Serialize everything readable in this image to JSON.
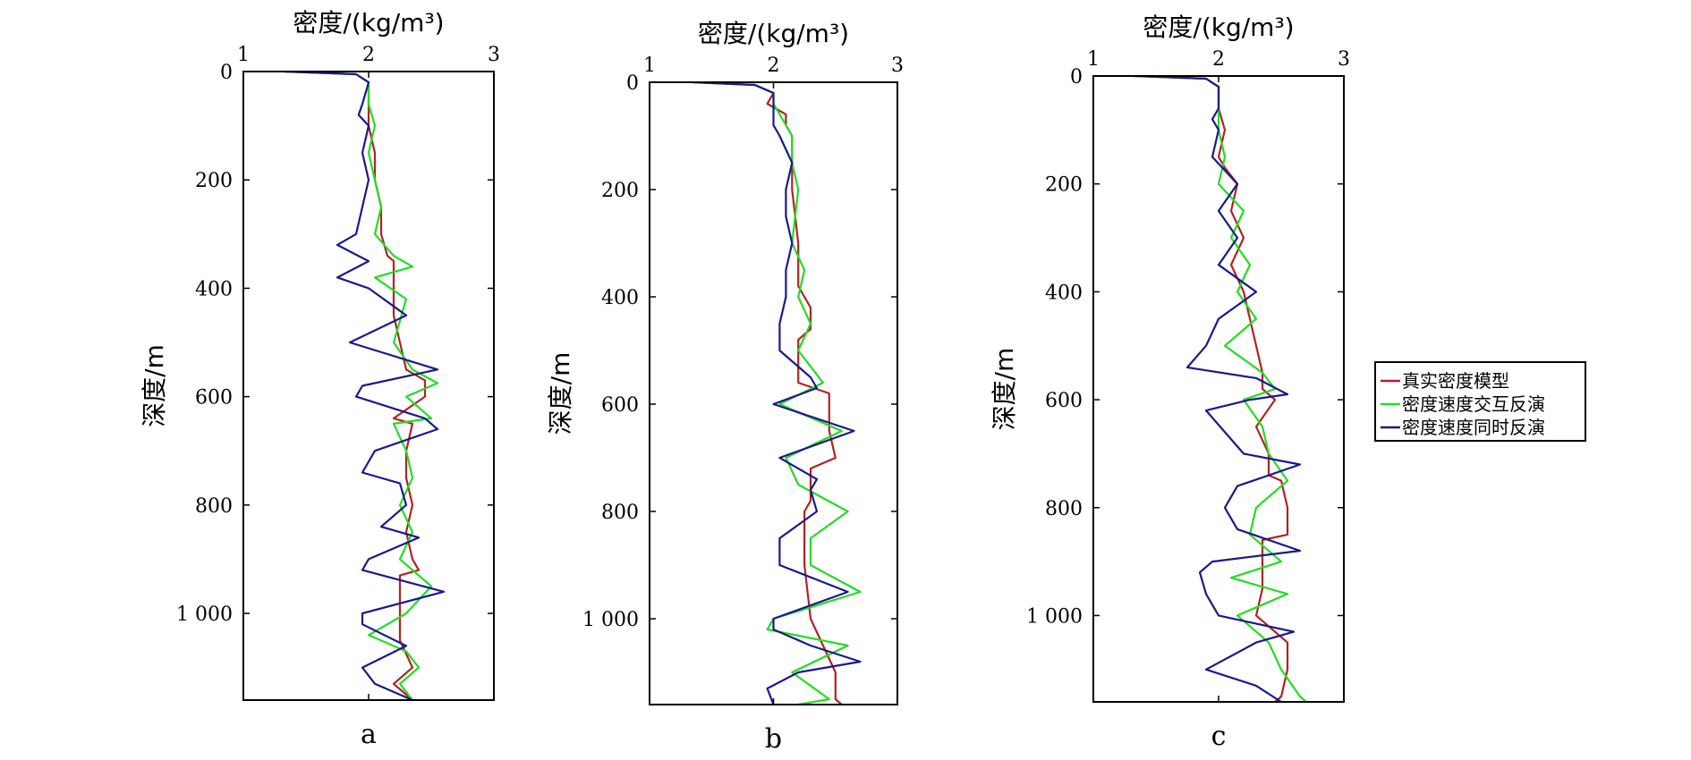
{
  "chart_data": {
    "type": "line",
    "shared": {
      "xlabel": "密度/(kg/m³)",
      "ylabel": "深度/m",
      "xlim": [
        1,
        3
      ],
      "ylim": [
        0,
        1160
      ],
      "xticks": [
        "1",
        "2",
        "3"
      ],
      "yticks": [
        {
          "value": 0,
          "label": "0"
        },
        {
          "value": 200,
          "label": "200"
        },
        {
          "value": 400,
          "label": "400"
        },
        {
          "value": 600,
          "label": "600"
        },
        {
          "value": 800,
          "label": "800"
        },
        {
          "value": 1000,
          "label": "1 000"
        }
      ],
      "legend": {
        "placement": "right",
        "entries": [
          {
            "name": "真实密度模型",
            "color": "#b22222"
          },
          {
            "name": "密度速度交互反演",
            "color": "#22dd22"
          },
          {
            "name": "密度速度同时反演",
            "color": "#1a1a8c"
          }
        ]
      }
    },
    "panels": [
      {
        "label": "a",
        "series": [
          {
            "name": "真实密度模型",
            "color": "#b22222",
            "depth": [
              0,
              5,
              20,
              60,
              100,
              150,
              200,
              250,
              300,
              340,
              350,
              400,
              450,
              500,
              550,
              570,
              600,
              640,
              650,
              700,
              750,
              800,
              850,
              900,
              920,
              930,
              950,
              1000,
              1050,
              1100,
              1130,
              1160
            ],
            "density": [
              1.33,
              1.9,
              2.0,
              2.0,
              2.0,
              2.05,
              2.05,
              2.1,
              2.1,
              2.15,
              2.2,
              2.2,
              2.2,
              2.25,
              2.3,
              2.45,
              2.45,
              2.2,
              2.35,
              2.3,
              2.3,
              2.35,
              2.3,
              2.35,
              2.4,
              2.25,
              2.25,
              2.25,
              2.25,
              2.35,
              2.2,
              2.35
            ]
          },
          {
            "name": "密度速度交互反演",
            "color": "#22dd22",
            "depth": [
              0,
              5,
              20,
              60,
              100,
              150,
              200,
              250,
              300,
              340,
              360,
              380,
              420,
              460,
              500,
              550,
              575,
              600,
              640,
              650,
              700,
              750,
              800,
              850,
              900,
              950,
              1000,
              1040,
              1070,
              1100,
              1130,
              1160
            ],
            "density": [
              1.33,
              1.9,
              2.0,
              2.0,
              2.05,
              2.0,
              2.05,
              2.1,
              2.05,
              2.2,
              2.35,
              2.05,
              2.3,
              2.25,
              2.2,
              2.35,
              2.55,
              2.3,
              2.5,
              2.2,
              2.3,
              2.35,
              2.25,
              2.35,
              2.25,
              2.5,
              2.3,
              2.0,
              2.3,
              2.4,
              2.25,
              2.35
            ]
          },
          {
            "name": "密度速度同时反演",
            "color": "#1a1a8c",
            "depth": [
              0,
              5,
              20,
              60,
              80,
              100,
              150,
              200,
              250,
              300,
              320,
              350,
              380,
              400,
              450,
              500,
              550,
              580,
              600,
              640,
              660,
              700,
              740,
              760,
              800,
              840,
              860,
              900,
              920,
              960,
              1000,
              1020,
              1060,
              1100,
              1130,
              1160
            ],
            "density": [
              1.33,
              1.9,
              2.0,
              1.95,
              1.92,
              2.0,
              1.95,
              2.0,
              1.95,
              1.9,
              1.75,
              2.0,
              1.75,
              2.0,
              2.3,
              1.85,
              2.55,
              1.95,
              1.9,
              2.45,
              2.55,
              2.05,
              1.95,
              2.25,
              2.3,
              2.1,
              2.4,
              2.0,
              1.95,
              2.6,
              1.95,
              1.95,
              2.3,
              1.95,
              2.05,
              2.35
            ]
          }
        ]
      },
      {
        "label": "b",
        "series": [
          {
            "name": "真实密度模型",
            "color": "#b22222",
            "depth": [
              0,
              5,
              20,
              40,
              60,
              80,
              100,
              200,
              300,
              380,
              400,
              420,
              460,
              480,
              500,
              560,
              580,
              650,
              700,
              720,
              740,
              780,
              800,
              900,
              1000,
              1100,
              1150,
              1160
            ],
            "density": [
              1.35,
              1.85,
              2.0,
              1.95,
              2.1,
              2.1,
              2.15,
              2.15,
              2.2,
              2.2,
              2.25,
              2.3,
              2.3,
              2.2,
              2.2,
              2.2,
              2.45,
              2.45,
              2.5,
              2.3,
              2.3,
              2.3,
              2.25,
              2.25,
              2.3,
              2.5,
              2.5,
              2.55
            ]
          },
          {
            "name": "密度速度交互反演",
            "color": "#22dd22",
            "depth": [
              0,
              5,
              20,
              40,
              60,
              80,
              100,
              150,
              200,
              300,
              350,
              400,
              450,
              500,
              560,
              600,
              650,
              700,
              750,
              800,
              850,
              900,
              950,
              1000,
              1020,
              1050,
              1100,
              1150,
              1160
            ],
            "density": [
              1.35,
              1.85,
              2.0,
              2.0,
              2.05,
              2.1,
              2.15,
              2.15,
              2.2,
              2.15,
              2.25,
              2.2,
              2.3,
              2.2,
              2.4,
              2.05,
              2.55,
              2.1,
              2.2,
              2.6,
              2.3,
              2.3,
              2.7,
              2.0,
              1.95,
              2.6,
              2.15,
              2.45,
              2.2
            ]
          },
          {
            "name": "密度速度同时反演",
            "color": "#1a1a8c",
            "depth": [
              0,
              5,
              20,
              40,
              60,
              80,
              100,
              150,
              200,
              250,
              300,
              350,
              400,
              450,
              500,
              550,
              570,
              600,
              650,
              700,
              740,
              760,
              800,
              850,
              900,
              950,
              1000,
              1020,
              1050,
              1080,
              1100,
              1130,
              1160
            ],
            "density": [
              1.35,
              1.85,
              2.0,
              2.0,
              2.0,
              2.0,
              2.05,
              2.15,
              2.1,
              2.1,
              2.15,
              2.1,
              2.1,
              2.05,
              2.05,
              2.3,
              2.35,
              2.0,
              2.65,
              2.05,
              2.35,
              2.3,
              2.35,
              2.05,
              2.05,
              2.6,
              2.0,
              2.0,
              2.3,
              2.7,
              2.2,
              1.95,
              2.0
            ]
          }
        ]
      },
      {
        "label": "c",
        "series": [
          {
            "name": "真实密度模型",
            "color": "#b22222",
            "depth": [
              0,
              5,
              20,
              60,
              100,
              150,
              170,
              200,
              250,
              300,
              350,
              400,
              450,
              500,
              550,
              580,
              600,
              650,
              700,
              740,
              750,
              800,
              850,
              860,
              900,
              950,
              1000,
              1040,
              1050,
              1100,
              1150,
              1160
            ],
            "density": [
              1.33,
              1.9,
              2.0,
              2.0,
              2.05,
              2.0,
              2.05,
              2.15,
              2.1,
              2.2,
              2.1,
              2.2,
              2.25,
              2.3,
              2.35,
              2.35,
              2.45,
              2.3,
              2.4,
              2.4,
              2.5,
              2.55,
              2.55,
              2.35,
              2.35,
              2.35,
              2.3,
              2.5,
              2.55,
              2.55,
              2.5,
              2.45
            ]
          },
          {
            "name": "密度速度交互反演",
            "color": "#22dd22",
            "depth": [
              0,
              5,
              20,
              60,
              100,
              150,
              200,
              250,
              300,
              350,
              400,
              450,
              500,
              550,
              580,
              600,
              650,
              700,
              750,
              800,
              850,
              900,
              930,
              960,
              1000,
              1050,
              1100,
              1150,
              1160
            ],
            "density": [
              1.33,
              1.9,
              2.0,
              2.0,
              2.0,
              2.05,
              2.0,
              2.2,
              2.1,
              2.25,
              2.15,
              2.3,
              2.05,
              2.35,
              2.45,
              2.2,
              2.35,
              2.4,
              2.55,
              2.3,
              2.25,
              2.5,
              2.1,
              2.55,
              2.15,
              2.4,
              2.5,
              2.65,
              2.7
            ]
          },
          {
            "name": "密度速度同时反演",
            "color": "#1a1a8c",
            "depth": [
              0,
              5,
              20,
              60,
              80,
              100,
              150,
              200,
              250,
              300,
              350,
              400,
              450,
              500,
              540,
              560,
              590,
              600,
              620,
              700,
              720,
              760,
              800,
              840,
              880,
              900,
              920,
              960,
              1000,
              1030,
              1050,
              1100,
              1130,
              1160
            ],
            "density": [
              1.33,
              1.9,
              2.0,
              2.0,
              1.95,
              2.0,
              1.95,
              2.15,
              2.0,
              2.15,
              2.0,
              2.3,
              2.0,
              1.9,
              1.75,
              2.3,
              2.55,
              2.25,
              1.9,
              2.2,
              2.65,
              2.15,
              2.05,
              2.15,
              2.65,
              1.95,
              1.85,
              1.9,
              2.0,
              2.6,
              2.3,
              1.9,
              2.3,
              2.5
            ]
          }
        ]
      }
    ]
  }
}
